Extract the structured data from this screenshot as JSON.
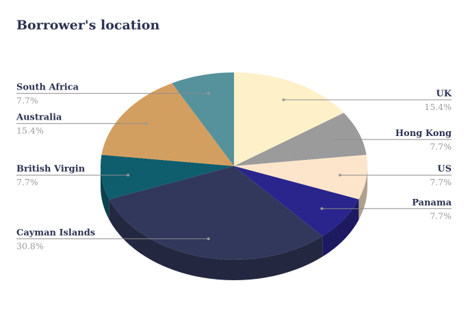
{
  "chart_data": {
    "type": "pie",
    "title": "Borrower's location",
    "slices": [
      {
        "label": "UK",
        "value": 15.4,
        "pct_label": "15.4%",
        "color": "#fef0c8"
      },
      {
        "label": "Hong Kong",
        "value": 7.7,
        "pct_label": "7.7%",
        "color": "#9b9b9b"
      },
      {
        "label": "US",
        "value": 7.7,
        "pct_label": "7.7%",
        "color": "#fce5cb"
      },
      {
        "label": "Panama",
        "value": 7.7,
        "pct_label": "7.7%",
        "color": "#29258c"
      },
      {
        "label": "Cayman Islands",
        "value": 30.8,
        "pct_label": "30.8%",
        "color": "#32385c"
      },
      {
        "label": "British Virgin",
        "value": 7.7,
        "pct_label": "7.7%",
        "color": "#0f5e6e"
      },
      {
        "label": "Australia",
        "value": 15.4,
        "pct_label": "15.4%",
        "color": "#d39f60"
      },
      {
        "label": "South Africa",
        "value": 7.7,
        "pct_label": "7.7%",
        "color": "#56929c"
      }
    ]
  }
}
